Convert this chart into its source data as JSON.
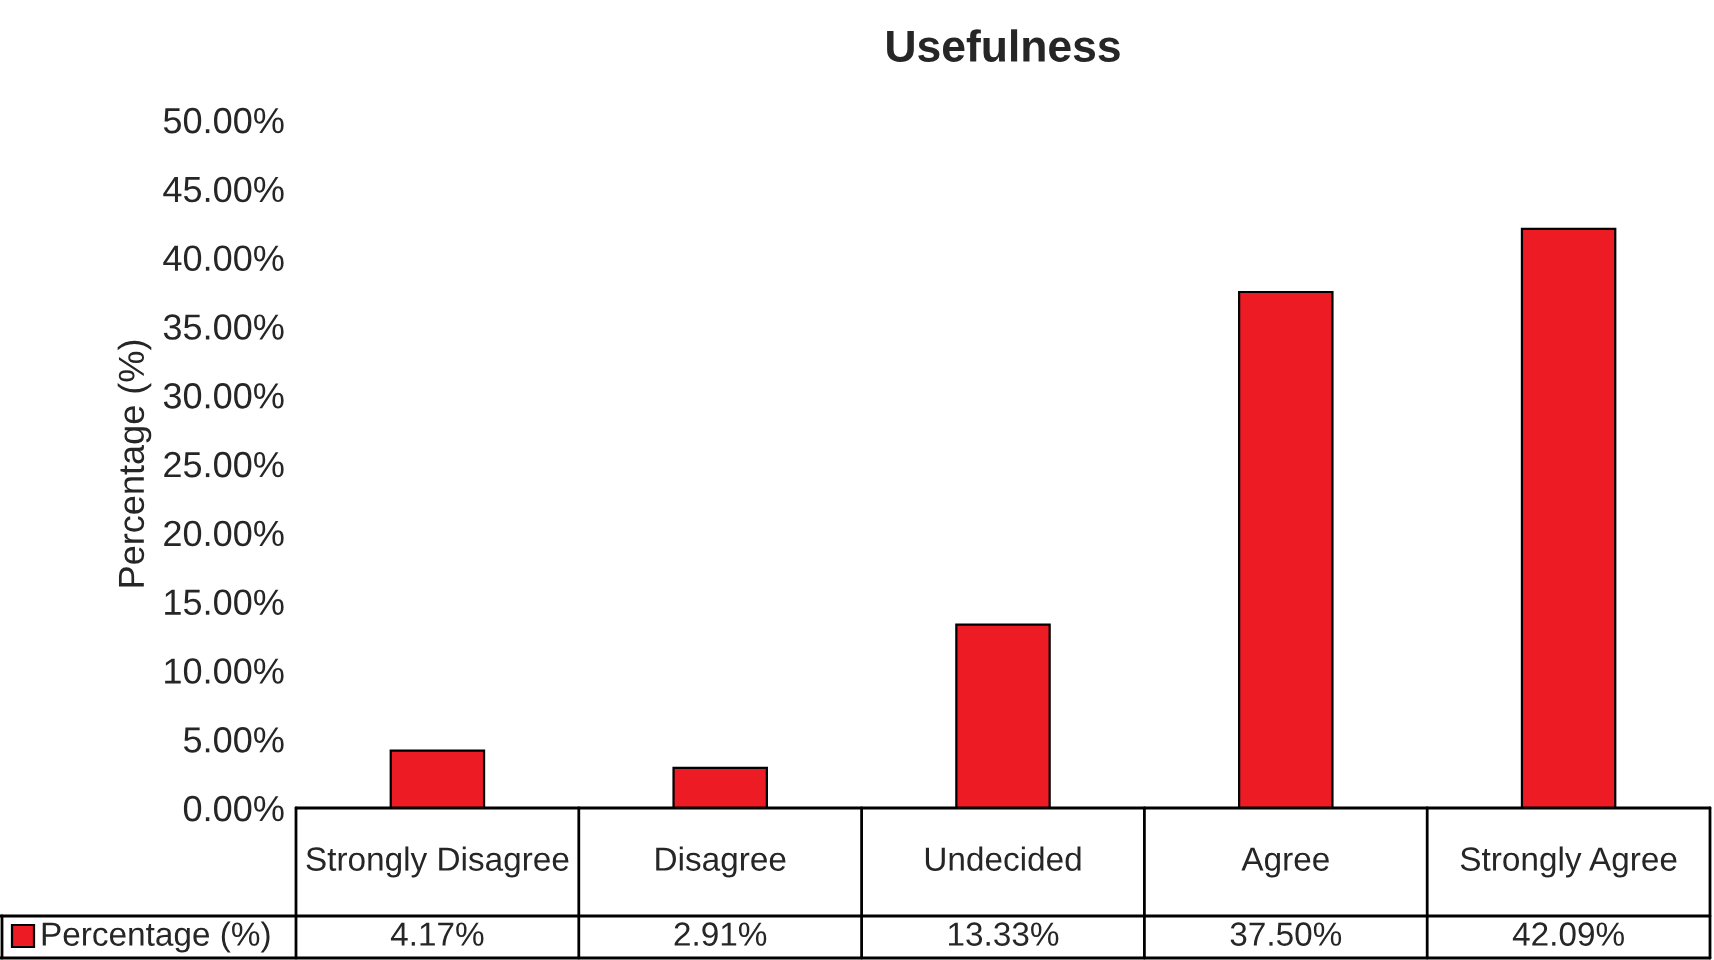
{
  "chart_data": {
    "type": "bar",
    "title": "Usefulness",
    "ylabel": "Percentage (%)",
    "categories": [
      "Strongly Disagree",
      "Disagree",
      "Undecided",
      "Agree",
      "Strongly Agree"
    ],
    "series": [
      {
        "name": "Percentage (%)",
        "color": "#ed1c24",
        "values": [
          4.17,
          2.91,
          13.33,
          37.5,
          42.09
        ],
        "value_labels": [
          "4.17%",
          "2.91%",
          "13.33%",
          "37.50%",
          "42.09%"
        ]
      }
    ],
    "ylim": [
      0,
      50
    ],
    "yticks": [
      {
        "value": 0,
        "label": "0.00%"
      },
      {
        "value": 5,
        "label": "5.00%"
      },
      {
        "value": 10,
        "label": "10.00%"
      },
      {
        "value": 15,
        "label": "15.00%"
      },
      {
        "value": 20,
        "label": "20.00%"
      },
      {
        "value": 25,
        "label": "25.00%"
      },
      {
        "value": 30,
        "label": "30.00%"
      },
      {
        "value": 35,
        "label": "35.00%"
      },
      {
        "value": 40,
        "label": "40.00%"
      },
      {
        "value": 45,
        "label": "45.00%"
      },
      {
        "value": 50,
        "label": "50.00%"
      }
    ],
    "grid": false
  }
}
